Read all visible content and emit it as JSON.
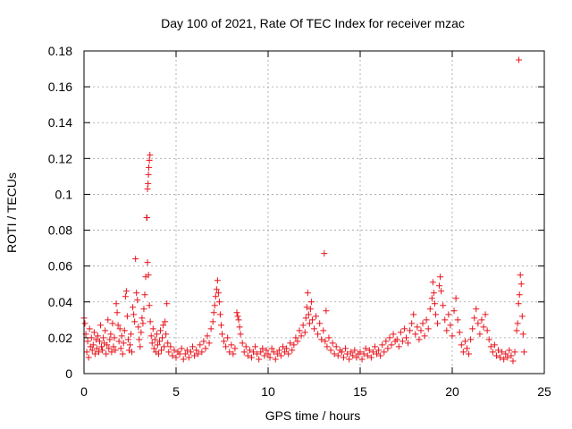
{
  "chart_data": {
    "type": "scatter",
    "title": "Day 100 of 2021, Rate Of TEC Index for receiver mzac",
    "xlabel": "GPS time / hours",
    "ylabel": "ROTI / TECUs",
    "xlim": [
      0,
      25
    ],
    "ylim": [
      0,
      0.18
    ],
    "x_ticks": [
      0,
      5,
      10,
      15,
      20,
      25
    ],
    "x_tick_labels": [
      "0",
      "5",
      "10",
      "15",
      "20",
      "25"
    ],
    "y_ticks": [
      0,
      0.02,
      0.04,
      0.06,
      0.08,
      0.1,
      0.12,
      0.14,
      0.16,
      0.18
    ],
    "y_tick_labels": [
      "0",
      "0.02",
      "0.04",
      "0.06",
      "0.08",
      "0.1",
      "0.12",
      "0.14",
      "0.16",
      "0.18"
    ],
    "grid": true,
    "marker": "+",
    "color": "#e8141c",
    "series": [
      {
        "name": "ROTI",
        "points": [
          [
            0.0,
            0.031
          ],
          [
            0.05,
            0.028
          ],
          [
            0.1,
            0.022
          ],
          [
            0.15,
            0.012
          ],
          [
            0.2,
            0.018
          ],
          [
            0.25,
            0.009
          ],
          [
            0.3,
            0.025
          ],
          [
            0.35,
            0.015
          ],
          [
            0.4,
            0.02
          ],
          [
            0.45,
            0.013
          ],
          [
            0.5,
            0.016
          ],
          [
            0.55,
            0.023
          ],
          [
            0.6,
            0.011
          ],
          [
            0.65,
            0.019
          ],
          [
            0.7,
            0.014
          ],
          [
            0.75,
            0.021
          ],
          [
            0.8,
            0.012
          ],
          [
            0.85,
            0.018
          ],
          [
            0.9,
            0.027
          ],
          [
            0.95,
            0.015
          ],
          [
            1.0,
            0.013
          ],
          [
            1.05,
            0.02
          ],
          [
            1.1,
            0.017
          ],
          [
            1.15,
            0.024
          ],
          [
            1.2,
            0.011
          ],
          [
            1.25,
            0.016
          ],
          [
            1.3,
            0.03
          ],
          [
            1.35,
            0.014
          ],
          [
            1.4,
            0.019
          ],
          [
            1.45,
            0.022
          ],
          [
            1.5,
            0.012
          ],
          [
            1.55,
            0.028
          ],
          [
            1.6,
            0.015
          ],
          [
            1.65,
            0.02
          ],
          [
            1.7,
            0.013
          ],
          [
            1.75,
            0.039
          ],
          [
            1.8,
            0.034
          ],
          [
            1.85,
            0.027
          ],
          [
            1.9,
            0.018
          ],
          [
            1.95,
            0.025
          ],
          [
            2.0,
            0.014
          ],
          [
            2.05,
            0.021
          ],
          [
            2.1,
            0.011
          ],
          [
            2.15,
            0.017
          ],
          [
            2.2,
            0.024
          ],
          [
            2.25,
            0.043
          ],
          [
            2.3,
            0.046
          ],
          [
            2.35,
            0.032
          ],
          [
            2.4,
            0.019
          ],
          [
            2.45,
            0.013
          ],
          [
            2.5,
            0.016
          ],
          [
            2.55,
            0.022
          ],
          [
            2.6,
            0.012
          ],
          [
            2.65,
            0.037
          ],
          [
            2.7,
            0.033
          ],
          [
            2.75,
            0.029
          ],
          [
            2.8,
            0.064
          ],
          [
            2.85,
            0.045
          ],
          [
            2.9,
            0.041
          ],
          [
            2.95,
            0.026
          ],
          [
            3.0,
            0.019
          ],
          [
            3.05,
            0.015
          ],
          [
            3.1,
            0.023
          ],
          [
            3.15,
            0.031
          ],
          [
            3.2,
            0.028
          ],
          [
            3.25,
            0.036
          ],
          [
            3.3,
            0.044
          ],
          [
            3.35,
            0.054
          ],
          [
            3.4,
            0.087
          ],
          [
            3.42,
            0.087
          ],
          [
            3.45,
            0.103
          ],
          [
            3.48,
            0.106
          ],
          [
            3.5,
            0.111
          ],
          [
            3.52,
            0.115
          ],
          [
            3.55,
            0.119
          ],
          [
            3.58,
            0.122
          ],
          [
            3.45,
            0.062
          ],
          [
            3.5,
            0.055
          ],
          [
            3.55,
            0.038
          ],
          [
            3.6,
            0.029
          ],
          [
            3.65,
            0.021
          ],
          [
            3.7,
            0.017
          ],
          [
            3.75,
            0.025
          ],
          [
            3.8,
            0.014
          ],
          [
            3.85,
            0.019
          ],
          [
            3.9,
            0.012
          ],
          [
            3.95,
            0.022
          ],
          [
            4.0,
            0.016
          ],
          [
            4.05,
            0.011
          ],
          [
            4.1,
            0.018
          ],
          [
            4.15,
            0.024
          ],
          [
            4.2,
            0.013
          ],
          [
            4.25,
            0.02
          ],
          [
            4.3,
            0.027
          ],
          [
            4.35,
            0.015
          ],
          [
            4.4,
            0.029
          ],
          [
            4.45,
            0.022
          ],
          [
            4.5,
            0.039
          ],
          [
            4.55,
            0.017
          ],
          [
            4.6,
            0.012
          ],
          [
            4.7,
            0.015
          ],
          [
            4.8,
            0.01
          ],
          [
            4.9,
            0.013
          ],
          [
            5.0,
            0.009
          ],
          [
            5.1,
            0.012
          ],
          [
            5.2,
            0.011
          ],
          [
            5.3,
            0.014
          ],
          [
            5.4,
            0.008
          ],
          [
            5.5,
            0.011
          ],
          [
            5.6,
            0.013
          ],
          [
            5.7,
            0.009
          ],
          [
            5.8,
            0.012
          ],
          [
            5.9,
            0.015
          ],
          [
            6.0,
            0.01
          ],
          [
            6.1,
            0.013
          ],
          [
            6.2,
            0.011
          ],
          [
            6.3,
            0.016
          ],
          [
            6.4,
            0.012
          ],
          [
            6.5,
            0.018
          ],
          [
            6.6,
            0.014
          ],
          [
            6.7,
            0.021
          ],
          [
            6.8,
            0.017
          ],
          [
            6.9,
            0.025
          ],
          [
            7.0,
            0.029
          ],
          [
            7.05,
            0.034
          ],
          [
            7.1,
            0.038
          ],
          [
            7.15,
            0.043
          ],
          [
            7.2,
            0.047
          ],
          [
            7.25,
            0.052
          ],
          [
            7.3,
            0.045
          ],
          [
            7.35,
            0.04
          ],
          [
            7.4,
            0.033
          ],
          [
            7.45,
            0.027
          ],
          [
            7.5,
            0.022
          ],
          [
            7.6,
            0.018
          ],
          [
            7.7,
            0.015
          ],
          [
            7.8,
            0.02
          ],
          [
            7.9,
            0.012
          ],
          [
            8.0,
            0.016
          ],
          [
            8.1,
            0.011
          ],
          [
            8.2,
            0.014
          ],
          [
            8.3,
            0.034
          ],
          [
            8.35,
            0.032
          ],
          [
            8.4,
            0.03
          ],
          [
            8.45,
            0.026
          ],
          [
            8.5,
            0.022
          ],
          [
            8.6,
            0.017
          ],
          [
            8.7,
            0.012
          ],
          [
            8.8,
            0.015
          ],
          [
            8.9,
            0.01
          ],
          [
            9.0,
            0.013
          ],
          [
            9.1,
            0.009
          ],
          [
            9.2,
            0.012
          ],
          [
            9.3,
            0.015
          ],
          [
            9.4,
            0.011
          ],
          [
            9.5,
            0.008
          ],
          [
            9.6,
            0.012
          ],
          [
            9.7,
            0.014
          ],
          [
            9.8,
            0.01
          ],
          [
            9.9,
            0.013
          ],
          [
            10.0,
            0.011
          ],
          [
            10.1,
            0.009
          ],
          [
            10.2,
            0.014
          ],
          [
            10.3,
            0.012
          ],
          [
            10.4,
            0.008
          ],
          [
            10.5,
            0.011
          ],
          [
            10.6,
            0.013
          ],
          [
            10.7,
            0.01
          ],
          [
            10.8,
            0.015
          ],
          [
            10.9,
            0.012
          ],
          [
            11.0,
            0.014
          ],
          [
            11.1,
            0.011
          ],
          [
            11.2,
            0.017
          ],
          [
            11.3,
            0.013
          ],
          [
            11.4,
            0.016
          ],
          [
            11.5,
            0.02
          ],
          [
            11.6,
            0.018
          ],
          [
            11.7,
            0.024
          ],
          [
            11.8,
            0.021
          ],
          [
            11.9,
            0.027
          ],
          [
            12.0,
            0.023
          ],
          [
            12.05,
            0.031
          ],
          [
            12.1,
            0.037
          ],
          [
            12.15,
            0.045
          ],
          [
            12.2,
            0.033
          ],
          [
            12.25,
            0.028
          ],
          [
            12.3,
            0.036
          ],
          [
            12.35,
            0.04
          ],
          [
            12.4,
            0.03
          ],
          [
            12.5,
            0.025
          ],
          [
            12.6,
            0.032
          ],
          [
            12.7,
            0.022
          ],
          [
            12.8,
            0.028
          ],
          [
            12.9,
            0.019
          ],
          [
            13.0,
            0.024
          ],
          [
            13.05,
            0.067
          ],
          [
            13.1,
            0.018
          ],
          [
            13.15,
            0.035
          ],
          [
            13.2,
            0.015
          ],
          [
            13.3,
            0.02
          ],
          [
            13.4,
            0.013
          ],
          [
            13.5,
            0.017
          ],
          [
            13.6,
            0.011
          ],
          [
            13.7,
            0.015
          ],
          [
            13.8,
            0.01
          ],
          [
            13.9,
            0.013
          ],
          [
            14.0,
            0.012
          ],
          [
            14.1,
            0.009
          ],
          [
            14.2,
            0.014
          ],
          [
            14.3,
            0.011
          ],
          [
            14.4,
            0.008
          ],
          [
            14.5,
            0.012
          ],
          [
            14.6,
            0.01
          ],
          [
            14.7,
            0.013
          ],
          [
            14.8,
            0.009
          ],
          [
            14.9,
            0.011
          ],
          [
            15.0,
            0.012
          ],
          [
            15.1,
            0.008
          ],
          [
            15.2,
            0.011
          ],
          [
            15.3,
            0.014
          ],
          [
            15.4,
            0.01
          ],
          [
            15.5,
            0.013
          ],
          [
            15.6,
            0.009
          ],
          [
            15.7,
            0.012
          ],
          [
            15.8,
            0.015
          ],
          [
            15.9,
            0.011
          ],
          [
            16.0,
            0.013
          ],
          [
            16.1,
            0.01
          ],
          [
            16.2,
            0.016
          ],
          [
            16.3,
            0.012
          ],
          [
            16.4,
            0.018
          ],
          [
            16.5,
            0.014
          ],
          [
            16.6,
            0.02
          ],
          [
            16.7,
            0.016
          ],
          [
            16.8,
            0.022
          ],
          [
            16.9,
            0.018
          ],
          [
            17.0,
            0.019
          ],
          [
            17.1,
            0.015
          ],
          [
            17.2,
            0.023
          ],
          [
            17.3,
            0.018
          ],
          [
            17.4,
            0.025
          ],
          [
            17.5,
            0.02
          ],
          [
            17.6,
            0.017
          ],
          [
            17.7,
            0.024
          ],
          [
            17.8,
            0.028
          ],
          [
            17.9,
            0.033
          ],
          [
            18.0,
            0.022
          ],
          [
            18.1,
            0.026
          ],
          [
            18.2,
            0.019
          ],
          [
            18.3,
            0.024
          ],
          [
            18.4,
            0.028
          ],
          [
            18.5,
            0.021
          ],
          [
            18.6,
            0.03
          ],
          [
            18.7,
            0.025
          ],
          [
            18.8,
            0.036
          ],
          [
            18.9,
            0.042
          ],
          [
            18.95,
            0.051
          ],
          [
            19.0,
            0.045
          ],
          [
            19.05,
            0.039
          ],
          [
            19.1,
            0.033
          ],
          [
            19.2,
            0.028
          ],
          [
            19.3,
            0.049
          ],
          [
            19.35,
            0.054
          ],
          [
            19.4,
            0.046
          ],
          [
            19.5,
            0.038
          ],
          [
            19.6,
            0.03
          ],
          [
            19.7,
            0.024
          ],
          [
            19.8,
            0.033
          ],
          [
            19.9,
            0.027
          ],
          [
            20.0,
            0.021
          ],
          [
            20.1,
            0.035
          ],
          [
            20.2,
            0.042
          ],
          [
            20.3,
            0.03
          ],
          [
            20.4,
            0.023
          ],
          [
            20.5,
            0.016
          ],
          [
            20.6,
            0.012
          ],
          [
            20.7,
            0.018
          ],
          [
            20.8,
            0.014
          ],
          [
            20.9,
            0.011
          ],
          [
            21.0,
            0.019
          ],
          [
            21.1,
            0.025
          ],
          [
            21.2,
            0.031
          ],
          [
            21.3,
            0.036
          ],
          [
            21.4,
            0.028
          ],
          [
            21.5,
            0.022
          ],
          [
            21.6,
            0.03
          ],
          [
            21.7,
            0.026
          ],
          [
            21.8,
            0.033
          ],
          [
            21.9,
            0.024
          ],
          [
            22.0,
            0.019
          ],
          [
            22.1,
            0.015
          ],
          [
            22.2,
            0.012
          ],
          [
            22.3,
            0.016
          ],
          [
            22.4,
            0.01
          ],
          [
            22.5,
            0.013
          ],
          [
            22.6,
            0.009
          ],
          [
            22.7,
            0.012
          ],
          [
            22.8,
            0.008
          ],
          [
            22.9,
            0.011
          ],
          [
            23.0,
            0.009
          ],
          [
            23.1,
            0.013
          ],
          [
            23.2,
            0.01
          ],
          [
            23.3,
            0.007
          ],
          [
            23.4,
            0.012
          ],
          [
            23.5,
            0.024
          ],
          [
            23.55,
            0.028
          ],
          [
            23.6,
            0.039
          ],
          [
            23.65,
            0.044
          ],
          [
            23.7,
            0.055
          ],
          [
            23.75,
            0.05
          ],
          [
            23.8,
            0.032
          ],
          [
            23.85,
            0.022
          ],
          [
            23.9,
            0.012
          ],
          [
            23.62,
            0.175
          ]
        ]
      }
    ]
  }
}
